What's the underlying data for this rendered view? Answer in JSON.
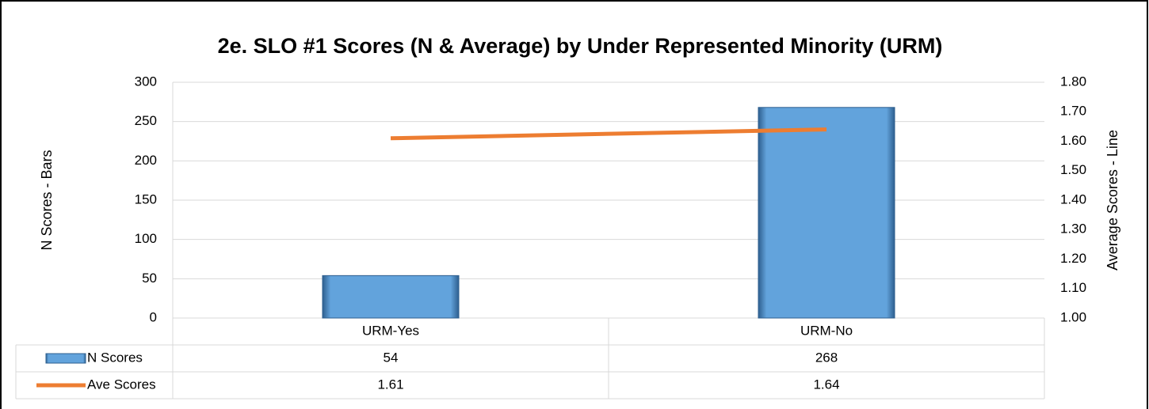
{
  "chart_data": {
    "type": "bar-line",
    "title": "2e. SLO #1 Scores (N & Average) by Under Represented Minority (URM)",
    "categories": [
      "URM-Yes",
      "URM-No"
    ],
    "series": [
      {
        "name": "N Scores",
        "color": "#5b9bd5",
        "values": [
          54,
          268
        ]
      },
      {
        "name": "Ave Scores",
        "color": "#ed7d31",
        "values": [
          1.61,
          1.64
        ],
        "axis": "y2"
      }
    ],
    "ylabel": "N Scores - Bars",
    "y2label": "Average Scores - Line",
    "ylim": [
      0,
      300
    ],
    "yticks": [
      0,
      50,
      100,
      150,
      200,
      250,
      300
    ],
    "y2lim": [
      1,
      1.8
    ],
    "y2ticks": [
      {
        "value": 1,
        "label": "1.00"
      },
      {
        "value": 1.1,
        "label": "1.10"
      },
      {
        "value": 1.2,
        "label": "1.20"
      },
      {
        "value": 1.3,
        "label": "1.30"
      },
      {
        "value": 1.4,
        "label": "1.40"
      },
      {
        "value": 1.5,
        "label": "1.50"
      },
      {
        "value": 1.6,
        "label": "1.60"
      },
      {
        "value": 1.7,
        "label": "1.70"
      },
      {
        "value": 1.8,
        "label": "1.80"
      }
    ],
    "grid": true,
    "data_table": true
  }
}
